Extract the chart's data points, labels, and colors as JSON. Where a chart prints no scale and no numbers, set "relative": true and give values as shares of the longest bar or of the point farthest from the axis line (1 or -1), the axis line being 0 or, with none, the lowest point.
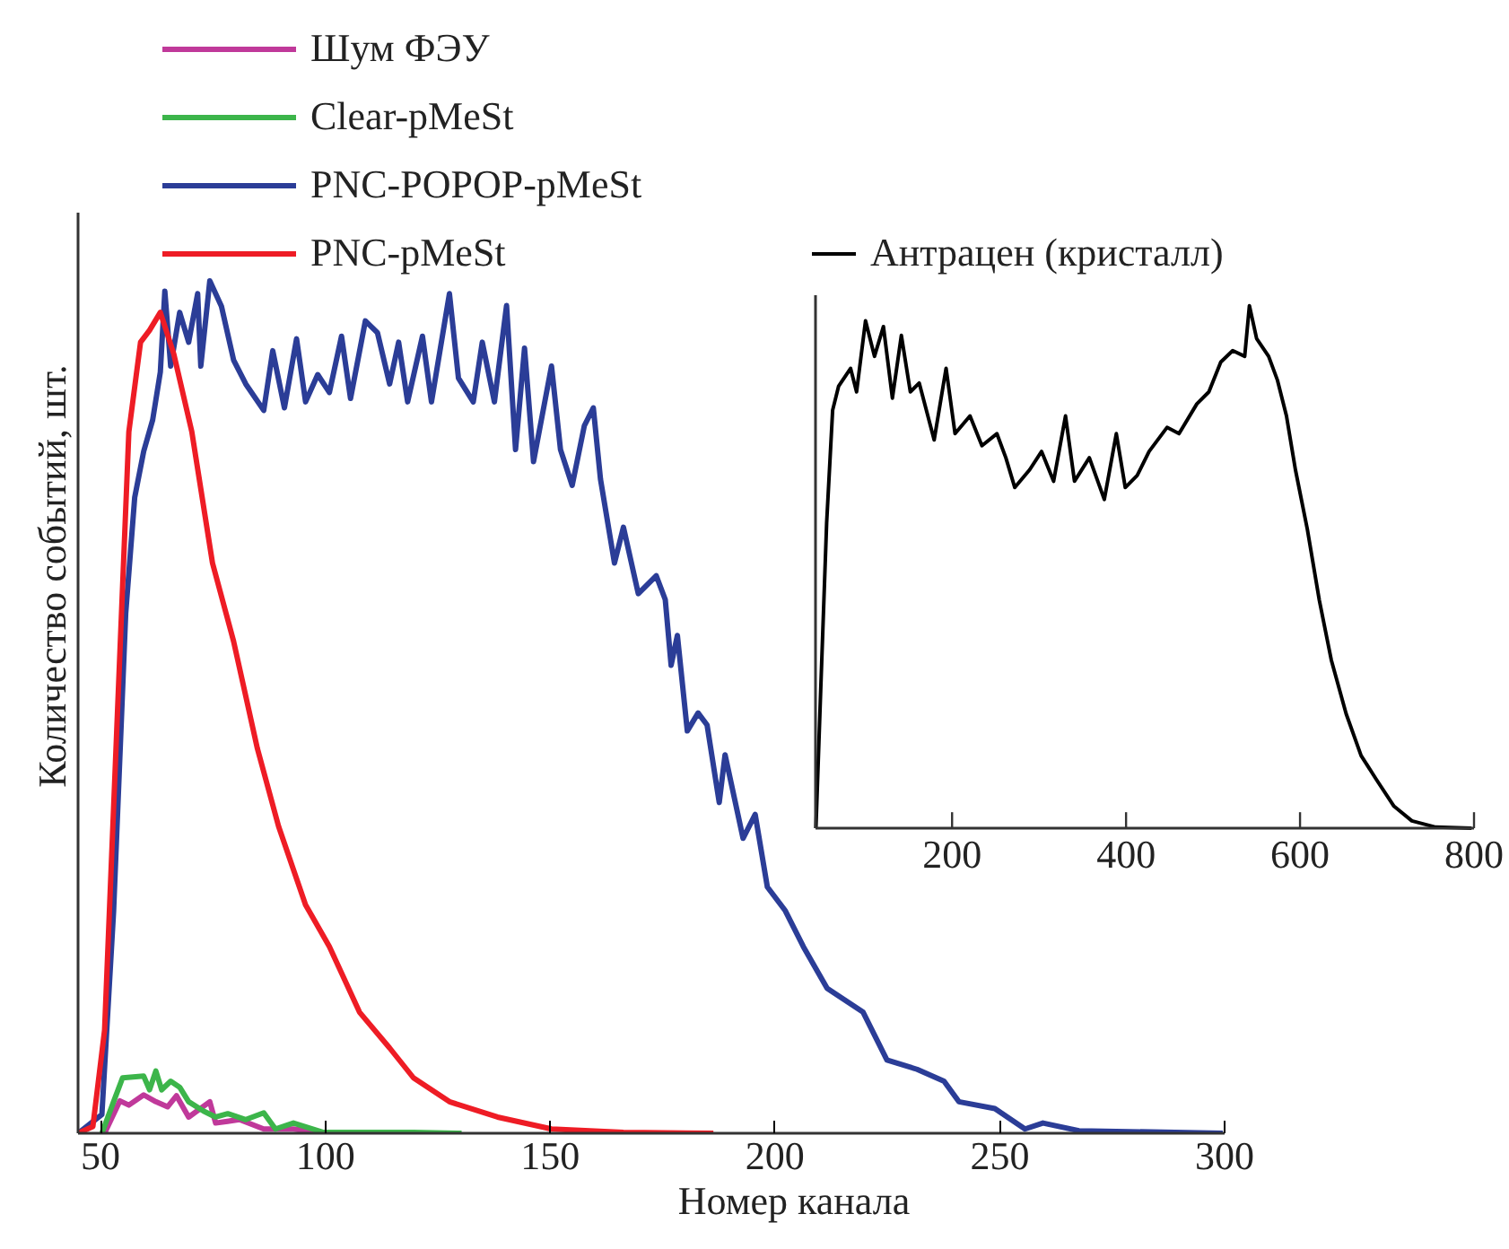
{
  "chart_data": [
    {
      "type": "line",
      "xlabel": "Номер канала",
      "ylabel": "Количество событий, шт.",
      "relative": true,
      "xlim": [
        45,
        300
      ],
      "xticks": [
        50,
        100,
        150,
        200,
        250,
        300
      ],
      "legend": "top left",
      "series": [
        {
          "name": "Шум ФЭУ",
          "color": "#c0399a",
          "x": [
            50.9,
            54.3,
            56.3,
            59.6,
            62.3,
            64.9,
            66.9,
            69.6,
            74.3,
            75.6,
            80.9,
            86.3,
            92.9,
            99.6,
            122.3
          ],
          "values": [
            0,
            0.038,
            0.033,
            0.045,
            0.037,
            0.031,
            0.044,
            0.019,
            0.037,
            0.012,
            0.016,
            0.005,
            0.005,
            0,
            0
          ]
        },
        {
          "name": "Clear-pMeSt",
          "color": "#3cb54a",
          "x": [
            50.3,
            52.9,
            54.9,
            59.6,
            60.9,
            62.3,
            63.6,
            65.6,
            67.6,
            69.6,
            72.9,
            75.6,
            78.3,
            82.3,
            86.3,
            88.9,
            92.9,
            99.6,
            119.6,
            130.3
          ],
          "values": [
            0,
            0.037,
            0.065,
            0.067,
            0.051,
            0.073,
            0.051,
            0.061,
            0.054,
            0.037,
            0.026,
            0.019,
            0.023,
            0.016,
            0.024,
            0.005,
            0.012,
            0.001,
            0.001,
            0
          ]
        },
        {
          "name": "PNC-POPOP-pMeSt",
          "color": "#2b3d97",
          "x": [
            45,
            50.3,
            52.9,
            55.6,
            57.6,
            59.6,
            61.6,
            63.3,
            64.3,
            65.6,
            67.6,
            69.6,
            71.6,
            72.3,
            74.3,
            76.9,
            79.6,
            82.3,
            86.3,
            88.3,
            90.9,
            93.6,
            95.6,
            98.3,
            100.9,
            103.6,
            105.6,
            108.9,
            111.6,
            114.3,
            116.3,
            118.3,
            121.6,
            123.6,
            127.6,
            129.6,
            132.9,
            134.9,
            137.6,
            140.3,
            142.3,
            144.3,
            146.3,
            150.3,
            152.3,
            154.9,
            157.6,
            159.6,
            161.2,
            164.3,
            166.3,
            169.6,
            173.6,
            175.6,
            176.9,
            178.3,
            180.5,
            182.9,
            184.9,
            187.6,
            188.9,
            192.9,
            195.6,
            198.3,
            202.3,
            206.3,
            211.6,
            219.6,
            224.9,
            231.6,
            237.6,
            240.9,
            248.9,
            255.6,
            259.6,
            267.6,
            299.6
          ],
          "values": [
            0,
            0.022,
            0.26,
            0.61,
            0.746,
            0.8,
            0.837,
            0.893,
            0.988,
            0.9,
            0.963,
            0.928,
            0.985,
            0.9,
            1.0,
            0.97,
            0.907,
            0.879,
            0.848,
            0.918,
            0.851,
            0.932,
            0.858,
            0.89,
            0.869,
            0.935,
            0.862,
            0.953,
            0.939,
            0.879,
            0.928,
            0.858,
            0.935,
            0.858,
            0.985,
            0.886,
            0.858,
            0.928,
            0.858,
            0.971,
            0.802,
            0.921,
            0.788,
            0.9,
            0.802,
            0.76,
            0.83,
            0.851,
            0.767,
            0.669,
            0.711,
            0.633,
            0.654,
            0.626,
            0.549,
            0.584,
            0.472,
            0.493,
            0.479,
            0.388,
            0.444,
            0.346,
            0.374,
            0.289,
            0.261,
            0.219,
            0.17,
            0.142,
            0.086,
            0.075,
            0.061,
            0.037,
            0.029,
            0.005,
            0.012,
            0.003,
            0
          ]
        },
        {
          "name": "PNC-pMeSt",
          "color": "#ee1c25",
          "x": [
            45,
            48.3,
            50.9,
            53.6,
            56.3,
            58.9,
            60.9,
            63.3,
            66.3,
            70.3,
            74.9,
            79.6,
            84.9,
            89.6,
            95.6,
            100.9,
            107.6,
            114.3,
            119.6,
            127.6,
            138.3,
            150.3,
            166.3,
            186.3
          ],
          "values": [
            0,
            0.008,
            0.121,
            0.472,
            0.823,
            0.928,
            0.942,
            0.963,
            0.914,
            0.823,
            0.669,
            0.577,
            0.451,
            0.36,
            0.268,
            0.219,
            0.142,
            0.1,
            0.065,
            0.037,
            0.019,
            0.005,
            0.001,
            0
          ]
        }
      ]
    },
    {
      "type": "line",
      "relative": true,
      "xlim": [
        43,
        800
      ],
      "xticks": [
        200,
        400,
        600,
        800
      ],
      "legend": "top left",
      "series": [
        {
          "name": "Антрацен (кристалл)",
          "color": "#000000",
          "x": [
            43.5,
            49,
            55.8,
            62.7,
            69.6,
            83.3,
            90.2,
            100.5,
            110.8,
            121.1,
            131.4,
            141.7,
            152,
            162.2,
            179.4,
            193.1,
            203.4,
            220.6,
            234.3,
            251.5,
            261.8,
            272.1,
            289.2,
            302.9,
            316.7,
            330.4,
            340.7,
            357.8,
            375,
            388.8,
            399.1,
            412.8,
            426.5,
            447.1,
            460.9,
            481.4,
            495.2,
            508.9,
            522.6,
            536.4,
            541.8,
            550.1,
            563.9,
            574.1,
            584.4,
            594.7,
            608.4,
            622.2,
            635.9,
            653,
            670.2,
            687.4,
            708,
            728.6,
            756,
            797.2
          ],
          "values": [
            0,
            0.265,
            0.584,
            0.8,
            0.846,
            0.88,
            0.835,
            0.971,
            0.903,
            0.96,
            0.823,
            0.943,
            0.835,
            0.852,
            0.743,
            0.88,
            0.755,
            0.789,
            0.732,
            0.755,
            0.709,
            0.652,
            0.686,
            0.721,
            0.664,
            0.789,
            0.664,
            0.709,
            0.629,
            0.755,
            0.652,
            0.675,
            0.721,
            0.767,
            0.755,
            0.812,
            0.835,
            0.892,
            0.914,
            0.903,
            1.0,
            0.937,
            0.903,
            0.857,
            0.789,
            0.686,
            0.572,
            0.436,
            0.322,
            0.219,
            0.139,
            0.094,
            0.042,
            0.014,
            0.002,
            0
          ]
        }
      ]
    }
  ]
}
